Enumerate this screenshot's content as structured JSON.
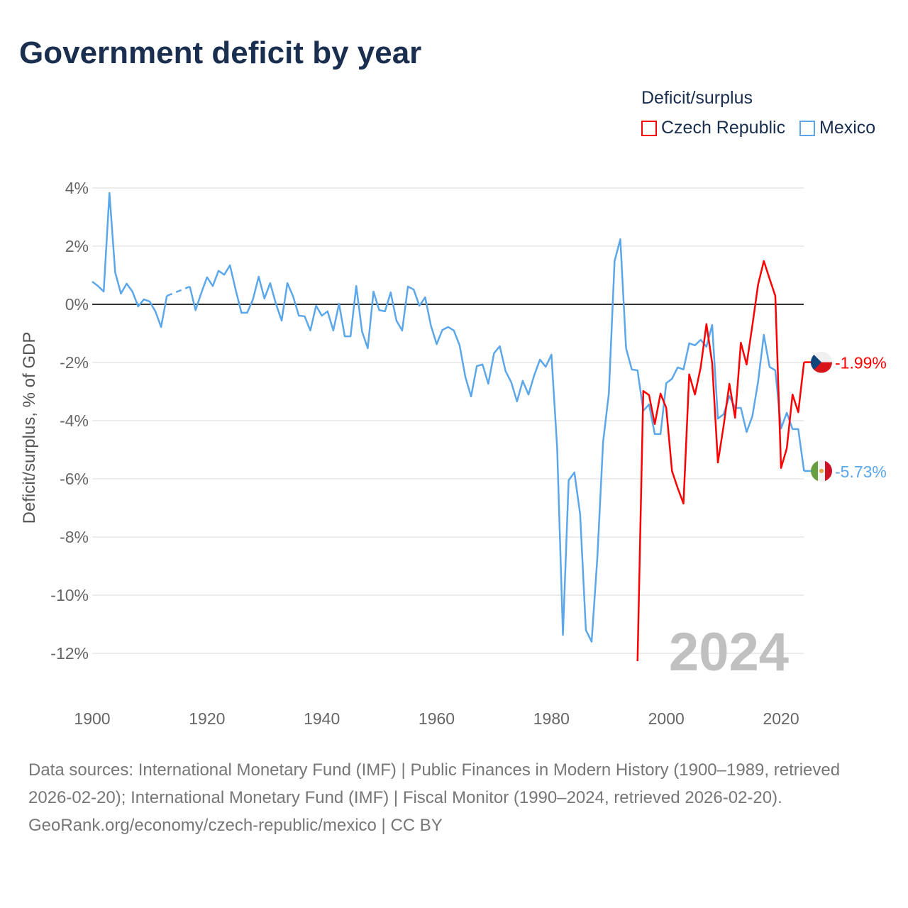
{
  "title": "Government deficit by year",
  "legend": {
    "title": "Deficit/surplus",
    "items": [
      {
        "label": "Czech Republic",
        "color": "#ff0000"
      },
      {
        "label": "Mexico",
        "color": "#5ba7ea"
      }
    ]
  },
  "footer": {
    "sources": "Data sources: International Monetary Fund (IMF) | Public Finances in Modern History (1900–1989, retrieved 2026-02-20); International Monetary Fund (IMF) | Fiscal Monitor (1990–2024, retrieved 2026-02-20).",
    "credit": "GeoRank.org/economy/czech-republic/mexico | CC BY"
  },
  "chart_data": {
    "type": "line",
    "title": "Government deficit by year",
    "xlabel": "",
    "ylabel": "Deficit/surplus, % of GDP",
    "xlim": [
      1900,
      2024
    ],
    "ylim": [
      -13,
      4.5
    ],
    "x_ticks": [
      1900,
      1920,
      1940,
      1960,
      1980,
      2000,
      2020
    ],
    "x_tick_labels": [
      "1900",
      "1920",
      "1940",
      "1960",
      "1980",
      "2000",
      "2020"
    ],
    "y_ticks": [
      4,
      2,
      0,
      -2,
      -4,
      -6,
      -8,
      -10,
      -12
    ],
    "y_tick_labels": [
      "4%",
      "2%",
      "0%",
      "-2%",
      "-4%",
      "-6%",
      "-8%",
      "-10%",
      "-12%"
    ],
    "year_watermark": "2024",
    "series": [
      {
        "name": "Mexico",
        "color": "#5ba7ea",
        "start_year": 1900,
        "end_label": "-5.73%",
        "values": [
          0.78,
          0.63,
          0.44,
          3.83,
          1.1,
          0.37,
          0.71,
          0.44,
          -0.07,
          0.17,
          0.1,
          -0.24,
          -0.78,
          0.29,
          null,
          null,
          null,
          0.61,
          -0.2,
          0.39,
          0.93,
          0.63,
          1.15,
          1.02,
          1.34,
          0.49,
          -0.29,
          -0.29,
          0.17,
          0.95,
          0.2,
          0.73,
          0.02,
          -0.56,
          0.73,
          0.27,
          -0.39,
          -0.41,
          -0.9,
          -0.05,
          -0.39,
          -0.24,
          -0.9,
          0.02,
          -1.1,
          -1.1,
          0.63,
          -0.93,
          -1.51,
          0.44,
          -0.2,
          -0.24,
          0.41,
          -0.56,
          -0.9,
          0.61,
          0.51,
          -0.05,
          0.24,
          -0.73,
          -1.37,
          -0.88,
          -0.78,
          -0.9,
          -1.41,
          -2.49,
          -3.17,
          -2.12,
          -2.07,
          -2.73,
          -1.68,
          -1.44,
          -2.29,
          -2.68,
          -3.34,
          -2.63,
          -3.1,
          -2.44,
          -1.9,
          -2.15,
          -1.73,
          -4.95,
          -11.37,
          -6.05,
          -5.78,
          -7.22,
          -11.2,
          -11.6,
          -8.7,
          -4.73,
          -3.07,
          1.49,
          2.24,
          -1.51,
          -2.24,
          -2.27,
          -3.66,
          -3.44,
          -4.46,
          -4.46,
          -2.71,
          -2.56,
          -2.17,
          -2.24,
          -1.34,
          -1.41,
          -1.22,
          -1.46,
          -0.71,
          -3.93,
          -3.78,
          -3.15,
          -3.56,
          -3.56,
          -4.39,
          -3.85,
          -2.66,
          -1.05,
          -2.15,
          -2.27,
          -4.27,
          -3.73,
          -4.29,
          -4.29,
          -5.73
        ]
      },
      {
        "name": "Czech Republic",
        "color": "#ff0000",
        "start_year": 1995,
        "end_label": "-1.99%",
        "values": [
          -12.27,
          -2.98,
          -3.12,
          -4.12,
          -3.07,
          -3.56,
          -5.73,
          -6.32,
          -6.85,
          -2.41,
          -3.1,
          -2.17,
          -0.68,
          -2.02,
          -5.44,
          -4.17,
          -2.73,
          -3.9,
          -1.32,
          -2.07,
          -0.73,
          0.68,
          1.49,
          0.88,
          0.29,
          -5.63,
          -4.95,
          -3.1,
          -3.71,
          -1.99
        ]
      }
    ]
  }
}
